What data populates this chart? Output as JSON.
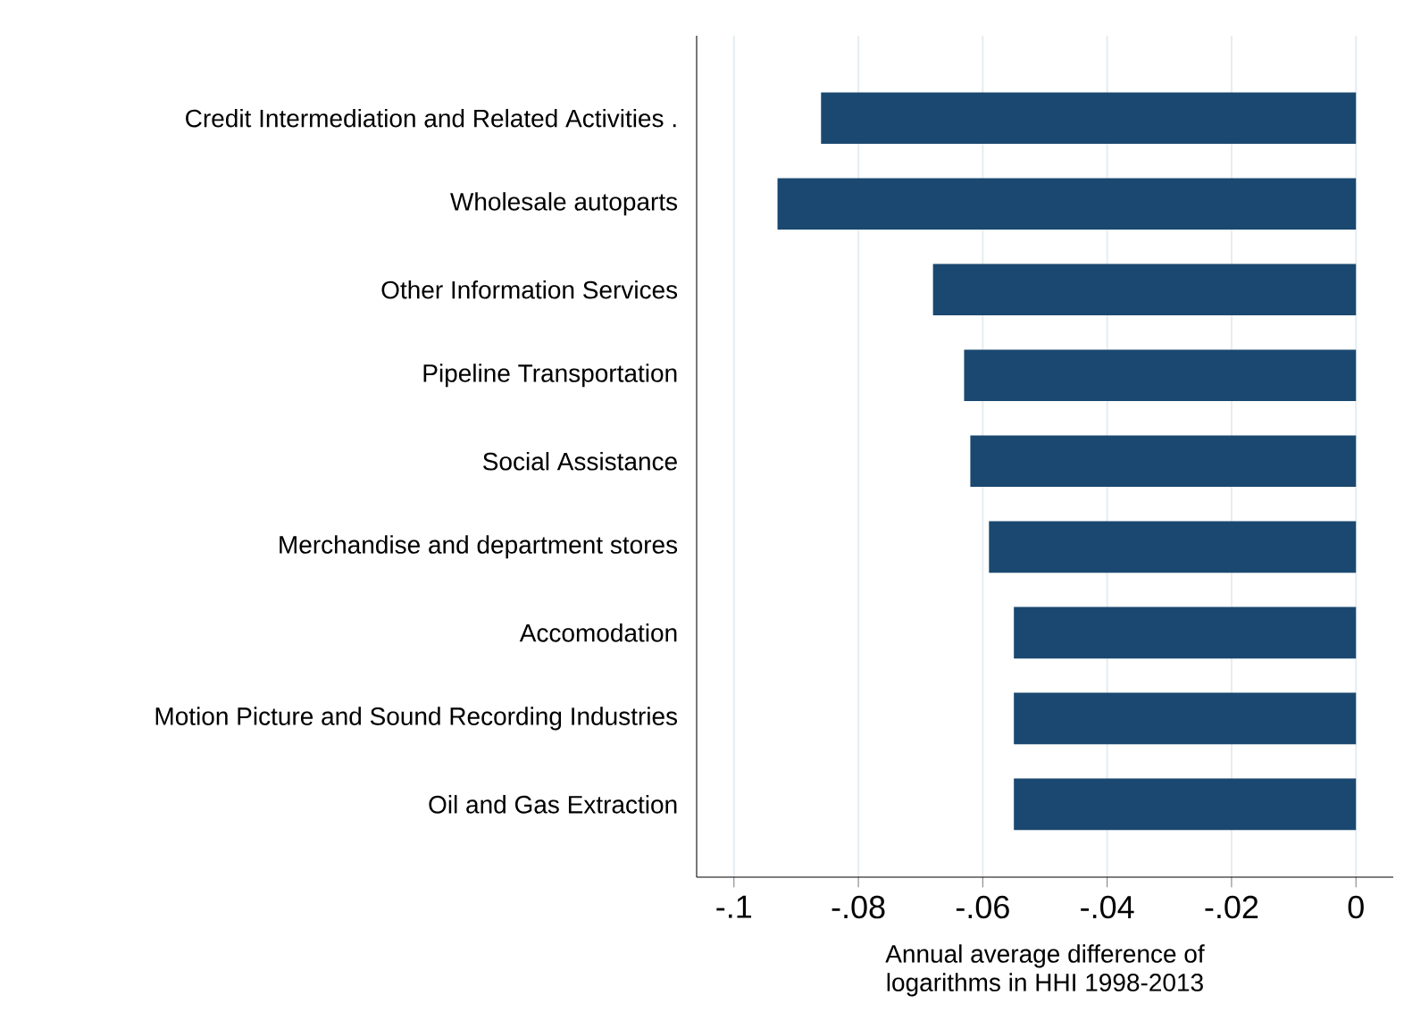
{
  "chart_data": {
    "type": "bar",
    "orientation": "horizontal",
    "xlabel": "Annual average difference of\nlogarithms in HHI 1998-2013",
    "categories": [
      "Credit Intermediation and Related Activities .",
      "Wholesale autoparts",
      "Other Information Services",
      "Pipeline Transportation",
      "Social Assistance",
      "Merchandise and department stores",
      "Accomodation",
      "Motion Picture and Sound Recording Industries",
      "Oil and Gas Extraction"
    ],
    "values": [
      -0.086,
      -0.093,
      -0.068,
      -0.063,
      -0.062,
      -0.059,
      -0.055,
      -0.055,
      -0.055
    ],
    "color": "#1a4870",
    "xlim": [
      -0.106,
      0.006
    ],
    "xticks": [
      {
        "value": -0.1,
        "label": "-.1"
      },
      {
        "value": -0.08,
        "label": "-.08"
      },
      {
        "value": -0.06,
        "label": "-.06"
      },
      {
        "value": -0.04,
        "label": "-.04"
      },
      {
        "value": -0.02,
        "label": "-.02"
      },
      0
    ],
    "grid": "x"
  }
}
